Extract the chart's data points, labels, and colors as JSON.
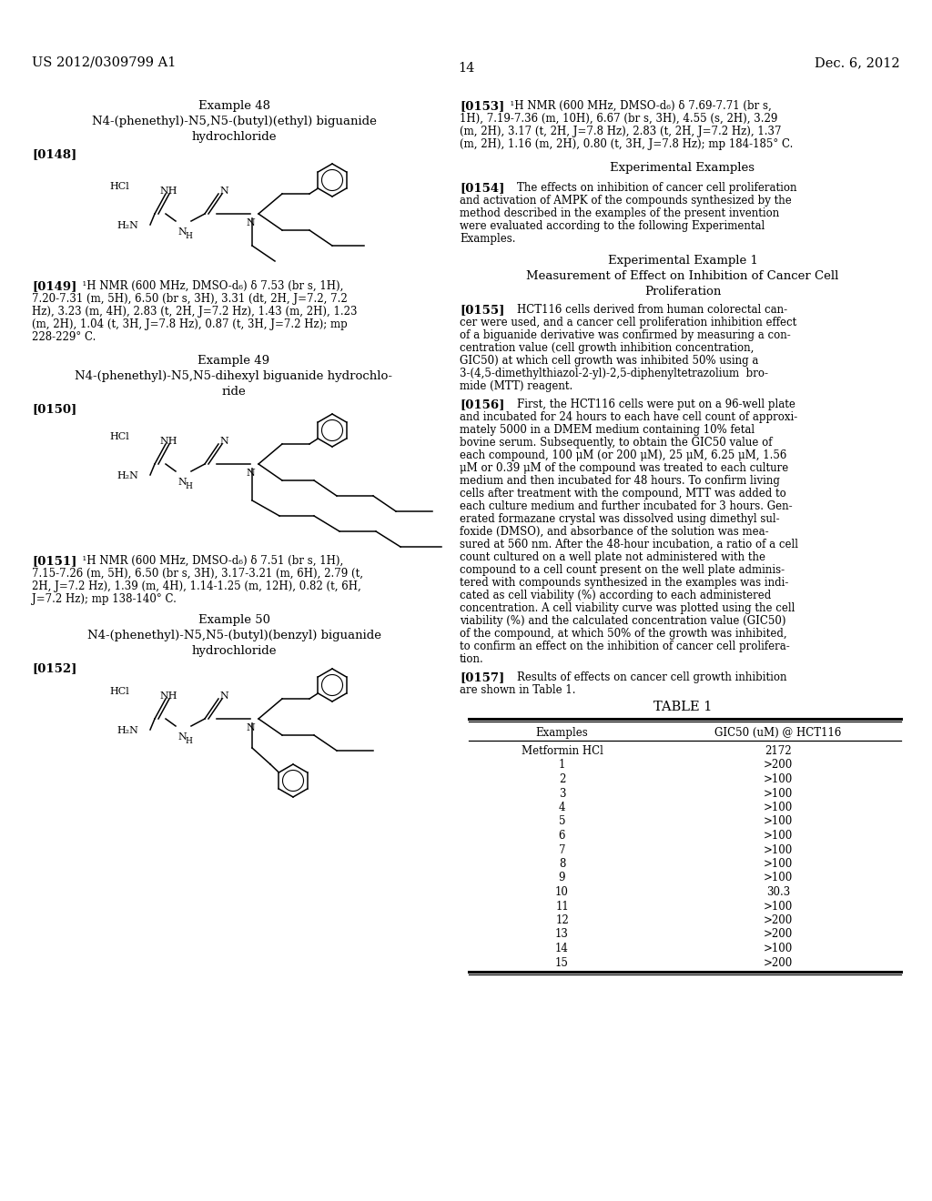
{
  "header_left": "US 2012/0309799 A1",
  "header_right": "Dec. 6, 2012",
  "page_number": "14",
  "background_color": "#ffffff",
  "text_color": "#000000",
  "font_size_body": 8.5,
  "font_size_title": 9.5,
  "font_size_header": 10.5,
  "left_column": {
    "example48_title": "Example 48",
    "example48_sub1": "N4-(phenethyl)-N5,N5-(butyl)(ethyl) biguanide",
    "example48_sub2": "hydrochloride",
    "example48_tag": "[0148]",
    "example49_title": "Example 49",
    "example49_sub1": "N4-(phenethyl)-N5,N5-dihexyl biguanide hydrochlo-",
    "example49_sub2": "ride",
    "example49_tag": "[0150]",
    "example50_title": "Example 50",
    "example50_sub1": "N4-(phenethyl)-N5,N5-(butyl)(benzyl) biguanide",
    "example50_sub2": "hydrochloride",
    "example50_tag": "[0152]"
  },
  "right_column": {
    "para153_tag": "[0153]",
    "para154_tag": "[0154]",
    "para155_tag": "[0155]",
    "para156_tag": "[0156]",
    "para157_tag": "[0157]",
    "exp_examples": "Experimental Examples",
    "exp_example1": "Experimental Example 1",
    "exp_example1_sub1": "Measurement of Effect on Inhibition of Cancer Cell",
    "exp_example1_sub2": "Proliferation",
    "table_title": "TABLE 1",
    "table_col1": "Examples",
    "table_col2": "GIC50 (uM) @ HCT116",
    "table_data": [
      [
        "Metformin HCl",
        "2172"
      ],
      [
        "1",
        ">200"
      ],
      [
        "2",
        ">100"
      ],
      [
        "3",
        ">100"
      ],
      [
        "4",
        ">100"
      ],
      [
        "5",
        ">100"
      ],
      [
        "6",
        ">100"
      ],
      [
        "7",
        ">100"
      ],
      [
        "8",
        ">100"
      ],
      [
        "9",
        ">100"
      ],
      [
        "10",
        "30.3"
      ],
      [
        "11",
        ">100"
      ],
      [
        "12",
        ">200"
      ],
      [
        "13",
        ">200"
      ],
      [
        "14",
        ">100"
      ],
      [
        "15",
        ">200"
      ]
    ]
  }
}
